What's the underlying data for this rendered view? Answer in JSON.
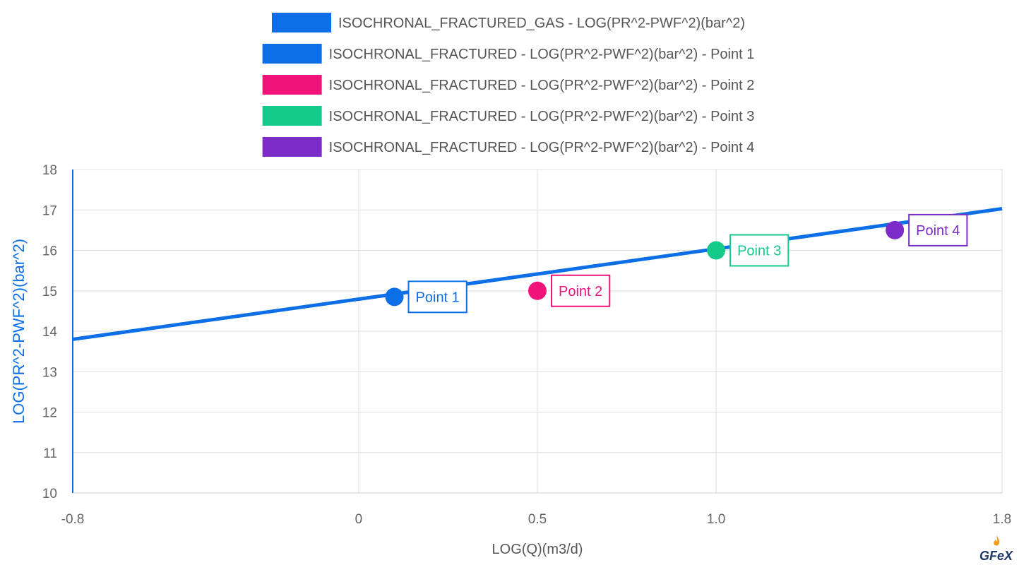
{
  "chart_data": {
    "type": "scatter",
    "xlabel": "LOG(Q)(m3/d)",
    "ylabel": "LOG(PR^2-PWF^2)(bar^2)",
    "xlim": [
      -0.8,
      1.8
    ],
    "ylim": [
      10,
      18
    ],
    "x_ticks": [
      -0.8,
      0,
      0.5,
      1.0,
      1.8
    ],
    "x_tick_labels": [
      "-0.8",
      "0",
      "0.5",
      "1.0",
      "1.8"
    ],
    "y_ticks": [
      10,
      11,
      12,
      13,
      14,
      15,
      16,
      17,
      18
    ],
    "y_tick_labels": [
      "10",
      "11",
      "12",
      "13",
      "14",
      "15",
      "16",
      "17",
      "18"
    ],
    "grid": true,
    "legend_position": "top",
    "series": [
      {
        "name": "ISOCHRONAL_FRACTURED_GAS - LOG(PR^2-PWF^2)(bar^2)",
        "kind": "line",
        "color": "#0d6fe8",
        "x": [
          -0.8,
          1.8
        ],
        "y": [
          13.8,
          17.03
        ]
      },
      {
        "name": "ISOCHRONAL_FRACTURED - LOG(PR^2-PWF^2)(bar^2) - Point 1",
        "kind": "point",
        "color": "#0d6fe8",
        "x": [
          0.1
        ],
        "y": [
          14.85
        ],
        "annotation": "Point 1"
      },
      {
        "name": "ISOCHRONAL_FRACTURED - LOG(PR^2-PWF^2)(bar^2) - Point 2",
        "kind": "point",
        "color": "#f0147a",
        "x": [
          0.5
        ],
        "y": [
          15.0
        ],
        "annotation": "Point 2"
      },
      {
        "name": "ISOCHRONAL_FRACTURED - LOG(PR^2-PWF^2)(bar^2) - Point 3",
        "kind": "point",
        "color": "#14c98a",
        "x": [
          1.0
        ],
        "y": [
          16.0
        ],
        "annotation": "Point 3"
      },
      {
        "name": "ISOCHRONAL_FRACTURED - LOG(PR^2-PWF^2)(bar^2) - Point 4",
        "kind": "point",
        "color": "#7b2cc9",
        "x": [
          1.5
        ],
        "y": [
          16.5
        ],
        "annotation": "Point 4"
      }
    ]
  },
  "logo": {
    "text": "GFeX"
  },
  "colors": {
    "axis_title": "#0d6fe8",
    "grid": "#dddddd",
    "tick": "#666666"
  }
}
